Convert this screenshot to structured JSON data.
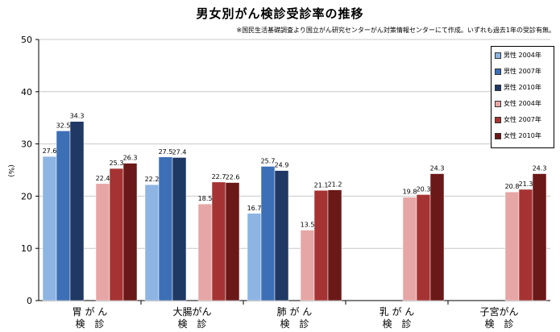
{
  "chart_data": {
    "type": "bar",
    "title": "男女別がん検診受診率の推移",
    "subtitle": "※国民生活基礎調査より国立がん研究センターがん対策情報センターにて作成。いずれも過去1年の受診有無。",
    "ylabel": "(%)",
    "xlabel": "",
    "ylim": [
      0,
      50
    ],
    "yticks": [
      0,
      10,
      20,
      30,
      40,
      50
    ],
    "grid": true,
    "legend_position": "top-right",
    "categories": [
      {
        "line1": "胃 が ん",
        "line2": "検　診"
      },
      {
        "line1": "大腸がん",
        "line2": "検　診"
      },
      {
        "line1": "肺 が ん",
        "line2": "検　診"
      },
      {
        "line1": "乳 が ん",
        "line2": "検　診"
      },
      {
        "line1": "子宮がん",
        "line2": "検　診"
      }
    ],
    "series": [
      {
        "name": "男性 2004年",
        "color": "#8db4e2",
        "values": [
          27.6,
          22.2,
          16.7,
          null,
          null
        ],
        "labels": [
          "27.6",
          "22.2",
          "16.7",
          "",
          ""
        ]
      },
      {
        "name": "男性 2007年",
        "color": "#3d6fb6",
        "values": [
          32.5,
          27.5,
          25.7,
          null,
          null
        ],
        "labels": [
          "32.5",
          "27.5",
          "25.7",
          "",
          ""
        ]
      },
      {
        "name": "男性 2010年",
        "color": "#1f3864",
        "values": [
          34.3,
          27.4,
          24.9,
          null,
          null
        ],
        "labels": [
          "34.3",
          "27.4",
          "24.9",
          "",
          ""
        ]
      },
      {
        "name": "女性 2004年",
        "color": "#e6a6a6",
        "values": [
          22.4,
          18.5,
          13.5,
          19.8,
          20.8
        ],
        "labels": [
          "22.4",
          "18.5",
          "13.5",
          "19.8",
          "20.8"
        ]
      },
      {
        "name": "女性 2007年",
        "color": "#a63333",
        "values": [
          25.3,
          22.7,
          21.1,
          20.3,
          21.3
        ],
        "labels": [
          "25.3",
          "22.7",
          "21.1",
          "20.3",
          "21.3"
        ]
      },
      {
        "name": "女性 2010年",
        "color": "#6b1818",
        "values": [
          26.3,
          22.6,
          21.2,
          24.3,
          24.3
        ],
        "labels": [
          "26.3",
          "22.6",
          "21.2",
          "24.3",
          "24.3"
        ]
      }
    ]
  }
}
